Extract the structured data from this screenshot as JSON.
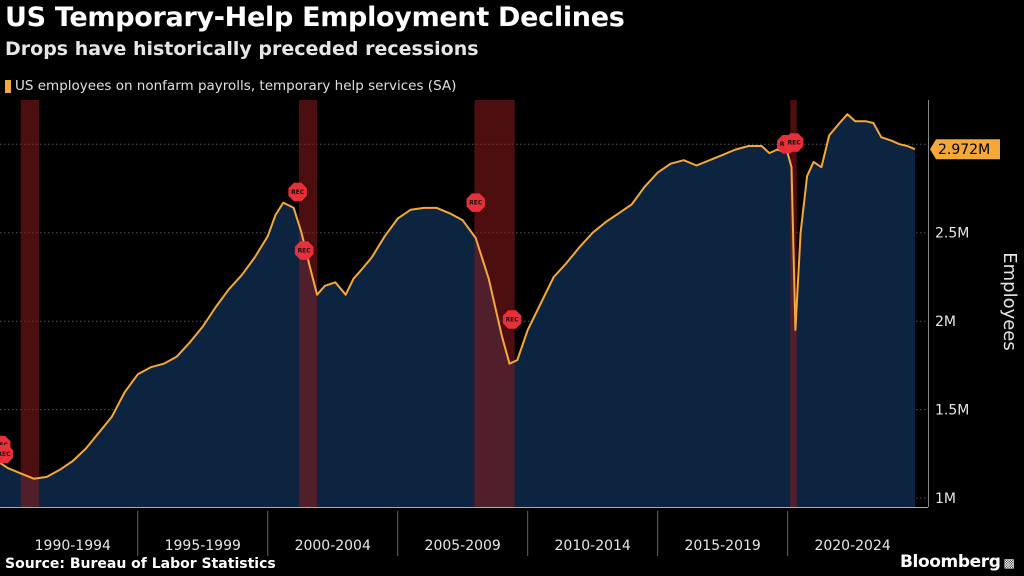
{
  "header": {
    "title": "US Temporary-Help Employment Declines",
    "subtitle": "Drops have historically preceded recessions"
  },
  "footer": {
    "source": "Source: Bureau of Labor Statistics",
    "brand": "Bloomberg"
  },
  "colors": {
    "line": "#f5a83a",
    "area": "#0c2440",
    "recession": "#8b1a1a",
    "rec_marker": "#e8303a",
    "grid": "#555555",
    "background": "#000000"
  },
  "chart_data": {
    "type": "area",
    "legend": "US employees on nonfarm payrolls, temporary help services (SA)",
    "ylabel": "Employees",
    "yunit": "millions",
    "ylim": [
      0.95,
      3.25
    ],
    "yticks": [
      1,
      1.5,
      2,
      2.5,
      3
    ],
    "ytick_labels": [
      "1M",
      "1.5M",
      "2M",
      "2.5M",
      ""
    ],
    "xlim": [
      1989.7,
      2025.4
    ],
    "xcategories": [
      "1990-1994",
      "1995-1999",
      "2000-2004",
      "2005-2009",
      "2010-2014",
      "2015-2019",
      "2020-2024"
    ],
    "last_value_label": "2.972M",
    "recession_marker_label": "REC",
    "recessions": [
      {
        "start": 1990.5,
        "end": 1991.2
      },
      {
        "start": 2001.2,
        "end": 2001.9
      },
      {
        "start": 2007.95,
        "end": 2009.5
      },
      {
        "start": 2020.1,
        "end": 2020.35
      }
    ],
    "recession_markers": [
      {
        "x": 1989.75,
        "y": 1.3
      },
      {
        "x": 1989.85,
        "y": 1.25
      },
      {
        "x": 2001.15,
        "y": 2.73
      },
      {
        "x": 2001.4,
        "y": 2.4
      },
      {
        "x": 2008.0,
        "y": 2.67
      },
      {
        "x": 2009.4,
        "y": 2.01
      },
      {
        "x": 2019.95,
        "y": 3.0
      },
      {
        "x": 2020.25,
        "y": 3.01
      }
    ],
    "series": [
      {
        "x": [
          1989.7,
          1990.0,
          1990.5,
          1991.0,
          1991.5,
          1992.0,
          1992.5,
          1993.0,
          1993.5,
          1994.0,
          1994.5,
          1995.0,
          1995.5,
          1996.0,
          1996.5,
          1997.0,
          1997.5,
          1998.0,
          1998.5,
          1999.0,
          1999.5,
          2000.0,
          2000.3,
          2000.6,
          2001.0,
          2001.3,
          2001.6,
          2001.9,
          2002.2,
          2002.6,
          2003.0,
          2003.3,
          2003.6,
          2004.0,
          2004.5,
          2005.0,
          2005.5,
          2006.0,
          2006.5,
          2007.0,
          2007.5,
          2008.0,
          2008.5,
          2009.0,
          2009.3,
          2009.6,
          2010.0,
          2010.5,
          2011.0,
          2011.5,
          2012.0,
          2012.5,
          2013.0,
          2013.5,
          2014.0,
          2014.5,
          2015.0,
          2015.5,
          2016.0,
          2016.5,
          2017.0,
          2017.5,
          2018.0,
          2018.5,
          2019.0,
          2019.3,
          2019.6,
          2020.0,
          2020.15,
          2020.3,
          2020.5,
          2020.75,
          2021.0,
          2021.3,
          2021.6,
          2022.0,
          2022.3,
          2022.6,
          2023.0,
          2023.3,
          2023.6,
          2024.0,
          2024.3,
          2024.6,
          2024.9
        ],
        "y": [
          1.2,
          1.17,
          1.14,
          1.11,
          1.12,
          1.16,
          1.21,
          1.28,
          1.37,
          1.46,
          1.6,
          1.7,
          1.74,
          1.76,
          1.8,
          1.88,
          1.97,
          2.08,
          2.18,
          2.26,
          2.36,
          2.48,
          2.6,
          2.67,
          2.64,
          2.5,
          2.32,
          2.15,
          2.2,
          2.22,
          2.15,
          2.24,
          2.29,
          2.36,
          2.48,
          2.58,
          2.63,
          2.64,
          2.64,
          2.61,
          2.57,
          2.47,
          2.24,
          1.92,
          1.76,
          1.78,
          1.95,
          2.1,
          2.25,
          2.33,
          2.42,
          2.5,
          2.56,
          2.61,
          2.66,
          2.76,
          2.84,
          2.89,
          2.91,
          2.88,
          2.91,
          2.94,
          2.97,
          2.99,
          2.99,
          2.95,
          2.97,
          2.95,
          2.87,
          1.95,
          2.5,
          2.82,
          2.9,
          2.87,
          3.05,
          3.12,
          3.17,
          3.13,
          3.13,
          3.12,
          3.04,
          3.02,
          3.0,
          2.99,
          2.972
        ]
      }
    ]
  }
}
